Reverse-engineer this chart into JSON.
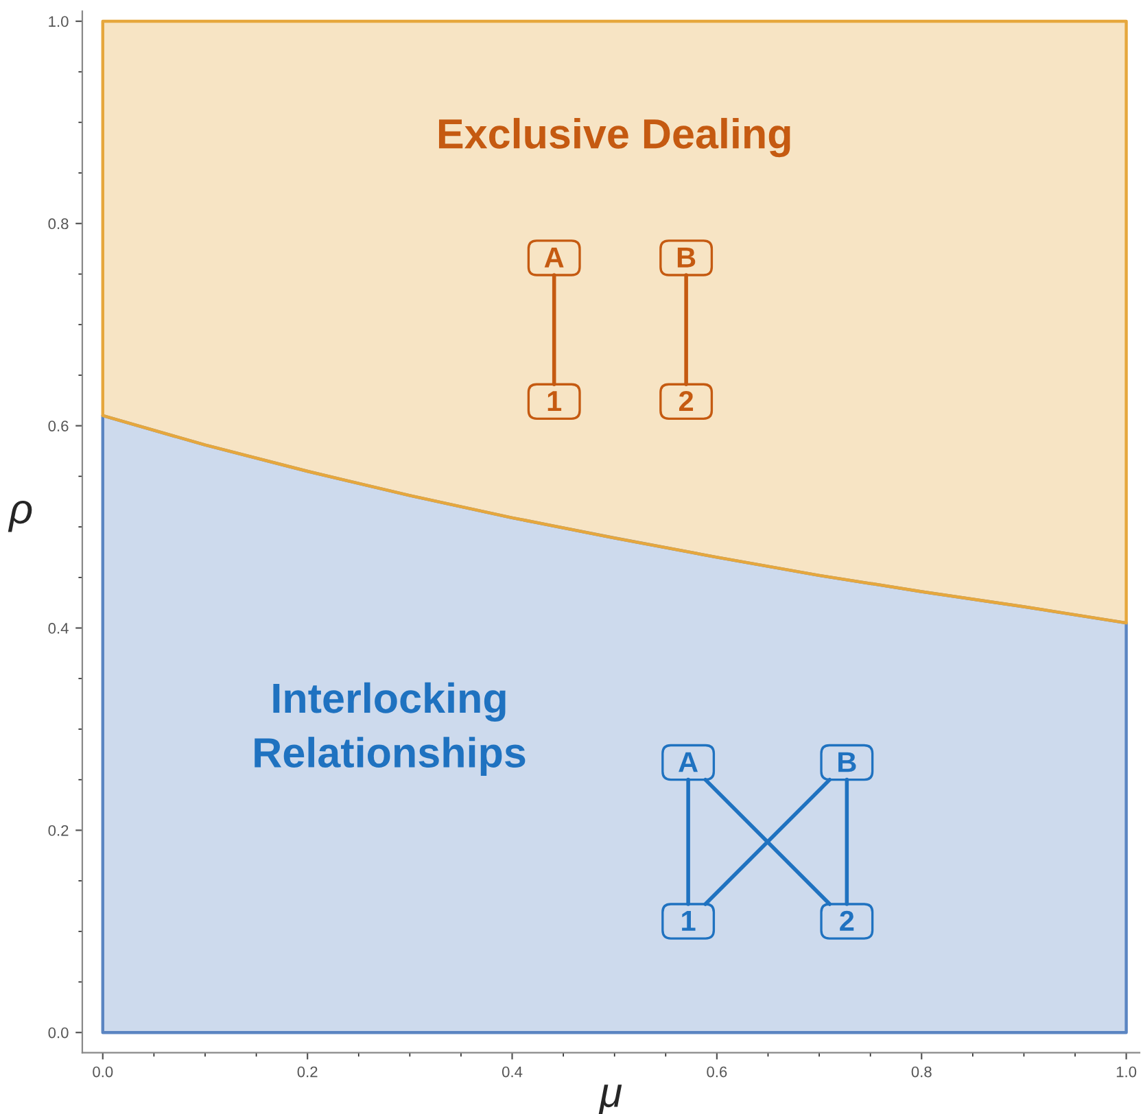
{
  "chart_data": {
    "type": "area",
    "stacked": true,
    "xlabel": "μ",
    "ylabel": "ρ",
    "x": [
      0,
      0.1,
      0.2,
      0.3,
      0.4,
      0.5,
      0.6,
      0.7,
      0.8,
      0.9,
      1.0
    ],
    "series": [
      {
        "color": "#5b85c2",
        "values": [
          0.61,
          0.581,
          0.555,
          0.531,
          0.509,
          0.489,
          0.47,
          0.452,
          0.436,
          0.421,
          0.405
        ]
      },
      {
        "color": "#e6a73d",
        "values": [
          0.39,
          0.419,
          0.445,
          0.469,
          0.491,
          0.511,
          0.53,
          0.548,
          0.564,
          0.579,
          0.595
        ]
      }
    ],
    "xlim": [
      -0.02,
      1.013
    ],
    "ylim": [
      -0.02,
      1.01
    ],
    "xticks": [
      {
        "value": 0,
        "label": "0.0"
      },
      0.2,
      0.4,
      0.6,
      0.8,
      {
        "value": 1,
        "label": "1.0"
      }
    ],
    "yticks": [
      {
        "value": 0,
        "label": "0.0"
      },
      0.2,
      0.4,
      0.6,
      0.8,
      {
        "value": 1,
        "label": "1.0"
      }
    ],
    "grid": false,
    "annotations": [
      "Exclusive Dealing",
      "Interlocking\nRelationships",
      "A",
      "B",
      "1",
      "2",
      "A",
      "B",
      "1",
      "2"
    ]
  }
}
